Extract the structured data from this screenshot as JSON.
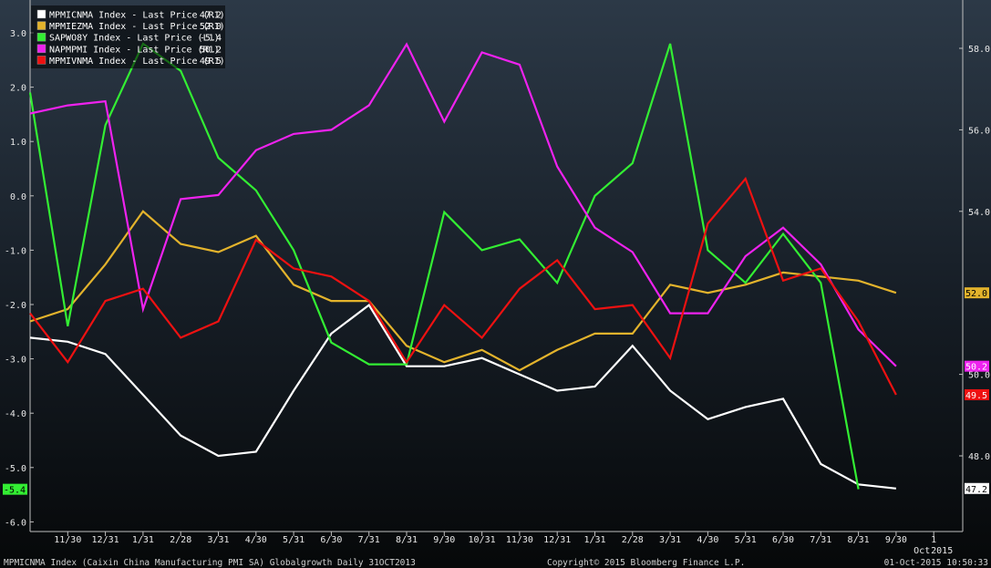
{
  "footer": {
    "left": "MPMICNMA Index (Caixin China Manufacturing PMI SA) Globalgrowth  Daily 31OCT2013",
    "center": "Copyright© 2015 Bloomberg Finance L.P.",
    "right": "01-Oct-2015 10:50:33"
  },
  "chart_data": {
    "type": "line",
    "title": "",
    "xlabel": "",
    "ylabel_left": "",
    "ylabel_right": "",
    "x_tick_labels": [
      "11/30",
      "12/31",
      "1/31",
      "2/28",
      "3/31",
      "4/30",
      "5/31",
      "6/30",
      "7/31",
      "8/31",
      "9/30",
      "10/31",
      "11/30",
      "12/31",
      "1/31",
      "2/28",
      "3/31",
      "4/30",
      "5/31",
      "6/30",
      "7/31",
      "8/31",
      "9/30",
      "1"
    ],
    "x_month_label": "Oct",
    "x_year_label": "2015",
    "x": [
      "10/31",
      "11/30",
      "12/31",
      "1/31",
      "2/28",
      "3/31",
      "4/30",
      "5/31",
      "6/30",
      "7/31",
      "8/31",
      "9/30",
      "10/31",
      "11/30",
      "12/31",
      "1/31",
      "2/28",
      "3/31",
      "4/30",
      "5/31",
      "6/30",
      "7/31",
      "8/31",
      "9/30"
    ],
    "left_axis": {
      "ylim": [
        -6.0,
        3.0
      ],
      "ticks": [
        "3.0",
        "2.0",
        "1.0",
        "0.0",
        "-1.0",
        "-2.0",
        "-3.0",
        "-4.0",
        "-5.0",
        "-6.0"
      ]
    },
    "right_axis": {
      "ylim": [
        47.0,
        59.0
      ],
      "ticks": [
        "58.0",
        "56.0",
        "54.0",
        "50.0",
        "48.0"
      ]
    },
    "grid": false,
    "legend_position": "top-left",
    "series": [
      {
        "name": "MPMICNMA Index - Last Price (R1)",
        "last": "47.2",
        "axis": "right",
        "color": "#ffffff",
        "values": [
          50.9,
          50.8,
          50.5,
          49.5,
          48.5,
          48.0,
          48.1,
          49.6,
          51.0,
          51.7,
          50.2,
          50.2,
          50.4,
          50.0,
          49.6,
          49.7,
          50.7,
          49.6,
          48.9,
          49.2,
          49.4,
          47.8,
          47.3,
          47.2
        ]
      },
      {
        "name": "MPMIEZMA Index - Last Price (R1)",
        "last": "52.0",
        "axis": "right",
        "color": "#e3b32c",
        "values": [
          51.3,
          51.6,
          52.7,
          54.0,
          53.2,
          53.0,
          53.4,
          52.2,
          51.8,
          51.8,
          50.7,
          50.3,
          50.6,
          50.1,
          50.6,
          51.0,
          51.0,
          52.2,
          52.0,
          52.2,
          52.5,
          52.4,
          52.3,
          52.0
        ]
      },
      {
        "name": "SAPWO8Y Index - Last Price (L1)",
        "last": "-5.4",
        "axis": "left",
        "color": "#33ee33",
        "values": [
          1.9,
          -2.4,
          1.3,
          2.8,
          2.3,
          0.7,
          0.1,
          -1.0,
          -2.7,
          -3.1,
          -3.1,
          -0.3,
          -1.0,
          -0.8,
          -1.6,
          0.0,
          0.6,
          2.8,
          -1.0,
          -1.6,
          -0.7,
          -1.6,
          -5.4,
          null
        ]
      },
      {
        "name": "NAPMPMI Index - Last Price (R1)",
        "last": "50.2",
        "axis": "right",
        "color": "#ee22ee",
        "values": [
          56.4,
          56.6,
          56.7,
          51.6,
          54.3,
          54.4,
          55.5,
          55.9,
          56.0,
          56.6,
          58.1,
          56.2,
          57.9,
          57.6,
          55.1,
          53.6,
          53.0,
          51.5,
          51.5,
          52.9,
          53.6,
          52.7,
          51.1,
          50.2
        ]
      },
      {
        "name": "MPMIVNMA Index - Last Price (R1)",
        "last": "49.5",
        "axis": "right",
        "color": "#ee1111",
        "values": [
          51.5,
          50.3,
          51.8,
          52.1,
          50.9,
          51.3,
          53.3,
          52.6,
          52.4,
          51.8,
          50.3,
          51.7,
          50.9,
          52.1,
          52.8,
          51.6,
          51.7,
          50.4,
          53.7,
          54.8,
          52.3,
          52.6,
          51.3,
          49.5
        ]
      }
    ]
  }
}
